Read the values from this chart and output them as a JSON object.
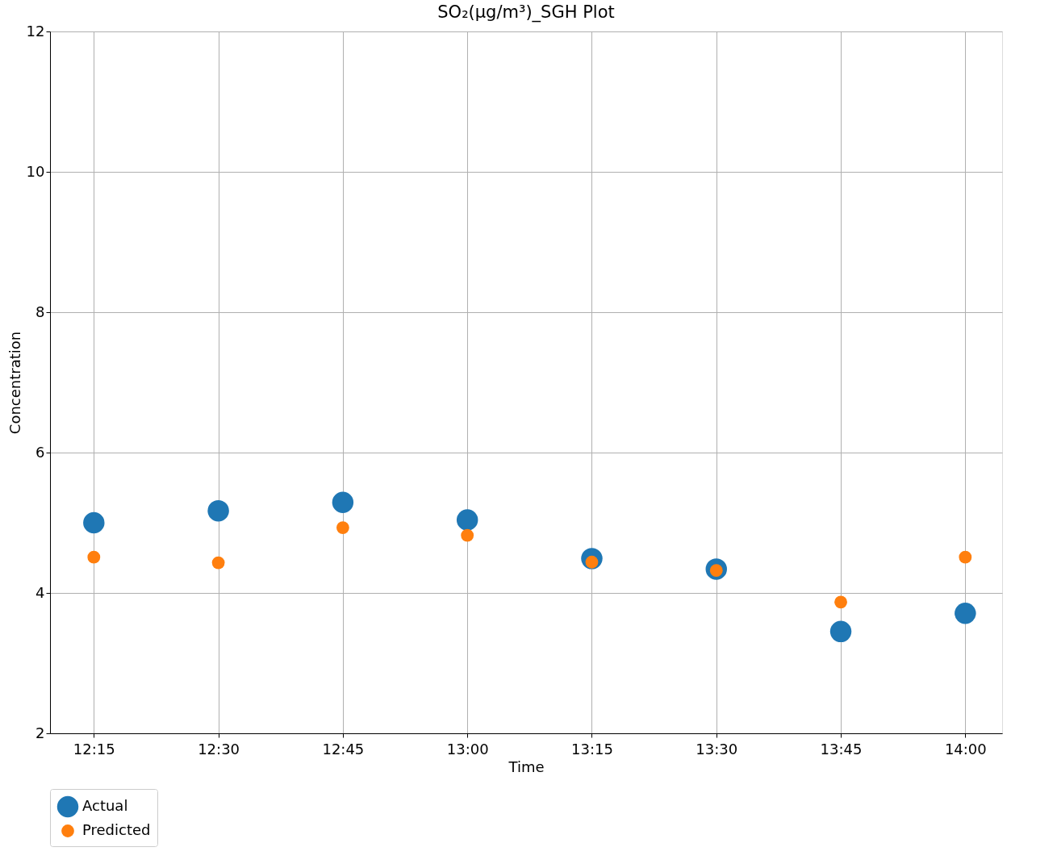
{
  "chart_data": {
    "type": "scatter",
    "title": "SO₂(µg/m³)_SGH Plot",
    "xlabel": "Time",
    "ylabel": "Concentration",
    "x": [
      12.25,
      12.5,
      12.75,
      13.0,
      13.25,
      13.5,
      13.75,
      14.0
    ],
    "series": [
      {
        "name": "Actual",
        "color": "#1f77b4",
        "values": [
          5.0,
          5.17,
          5.29,
          5.04,
          4.49,
          4.34,
          3.45,
          3.71
        ]
      },
      {
        "name": "Predicted",
        "color": "#ff7f0e",
        "values": [
          4.51,
          4.43,
          4.93,
          4.82,
          4.44,
          4.32,
          3.87,
          4.51
        ]
      }
    ],
    "xlim": [
      12.162,
      14.074
    ],
    "xticks": [
      {
        "value": 12.25,
        "label": "12:15"
      },
      {
        "value": 12.5,
        "label": "12:30"
      },
      {
        "value": 12.75,
        "label": "12:45"
      },
      {
        "value": 13.0,
        "label": "13:00"
      },
      {
        "value": 13.25,
        "label": "13:15"
      },
      {
        "value": 13.5,
        "label": "13:30"
      },
      {
        "value": 13.75,
        "label": "13:45"
      },
      {
        "value": 14.0,
        "label": "14:00"
      }
    ],
    "ylim": [
      2,
      12
    ],
    "yticks": [
      2,
      4,
      6,
      8,
      10,
      12
    ],
    "grid": true,
    "legend": "bottom",
    "marker": "circle"
  }
}
